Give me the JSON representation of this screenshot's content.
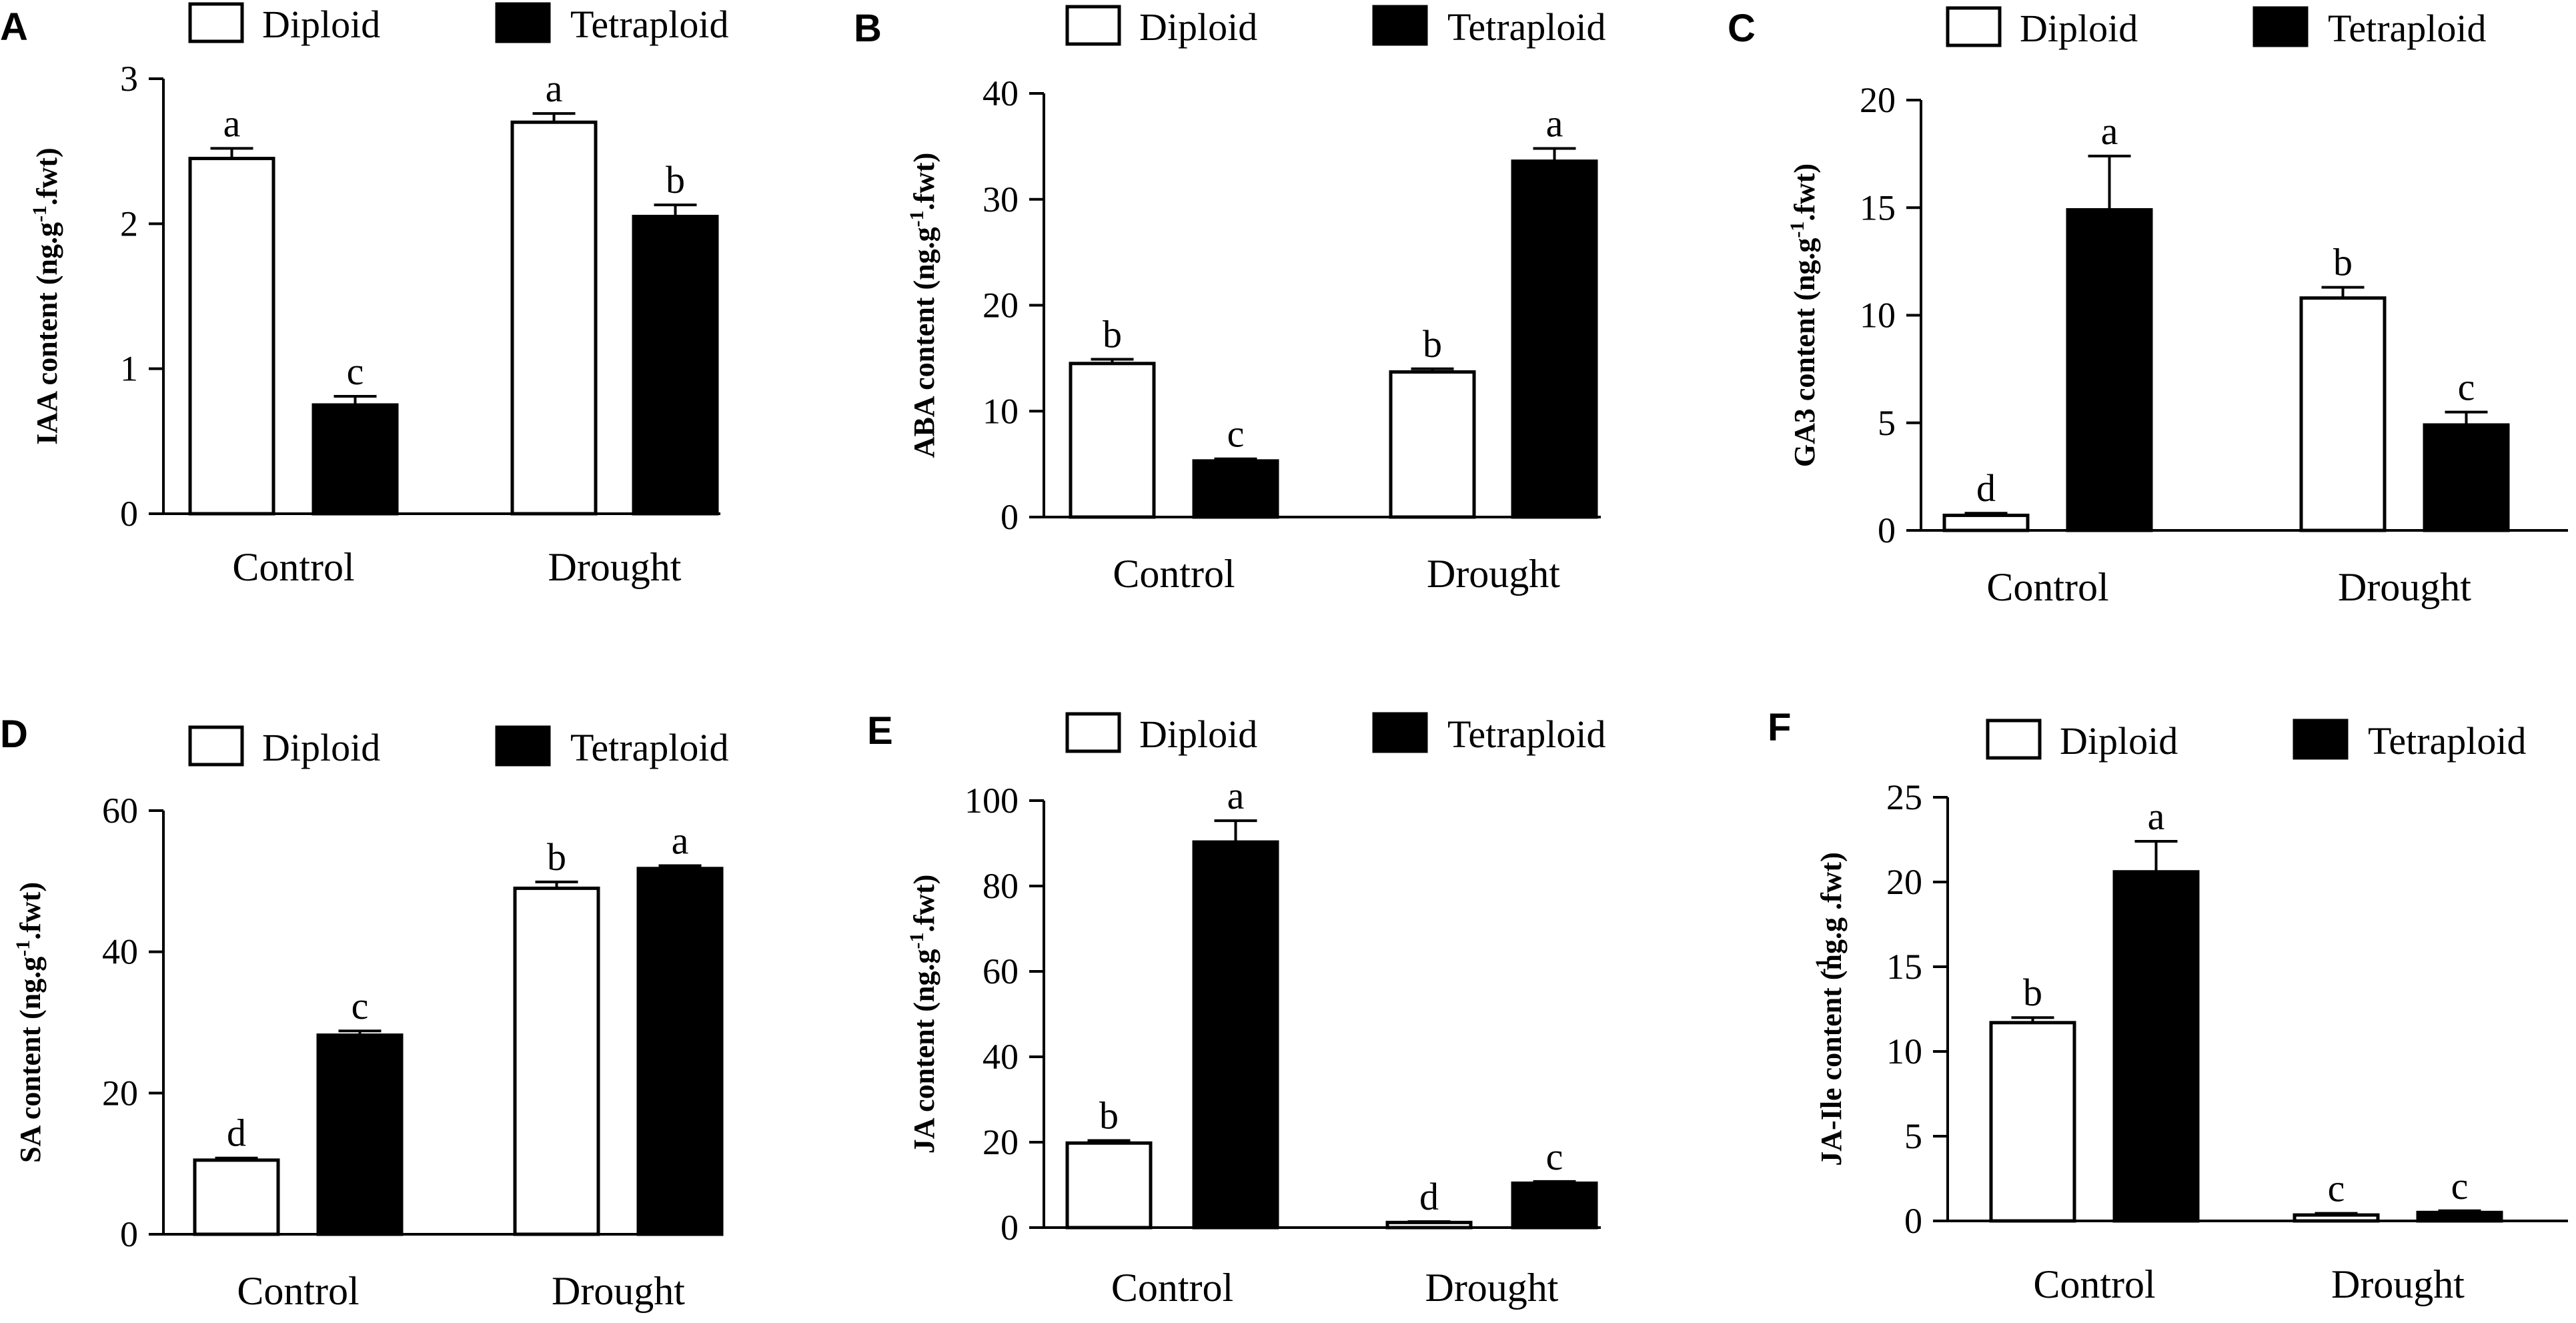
{
  "legend": {
    "diploid": "Diploid",
    "tetraploid": "Tetraploid"
  },
  "colors": {
    "diploid_fill": "#ffffff",
    "tetraploid_fill": "#000000",
    "stroke": "#000000"
  },
  "chart_data": [
    {
      "panel": "A",
      "type": "bar",
      "title": "",
      "ylabel": "IAA content (ng.g-1.fwt)",
      "ylabel_superscript": "-1",
      "ylim": [
        0,
        3
      ],
      "yticks": [
        0,
        1,
        2,
        3
      ],
      "ytick_labels": [
        "0",
        "1",
        "2",
        "3"
      ],
      "categories": [
        "Control",
        "Drought"
      ],
      "series": [
        {
          "name": "Diploid",
          "values": [
            2.45,
            2.7
          ],
          "errors": [
            0.07,
            0.06
          ],
          "letters": [
            "a",
            "a"
          ]
        },
        {
          "name": "Tetraploid",
          "values": [
            0.75,
            2.05
          ],
          "errors": [
            0.06,
            0.08
          ],
          "letters": [
            "c",
            "b"
          ]
        }
      ]
    },
    {
      "panel": "B",
      "type": "bar",
      "title": "",
      "ylabel": "ABA content (ng.g-1.fwt)",
      "ylabel_superscript": "-1",
      "ylim": [
        0,
        40
      ],
      "yticks": [
        0,
        10,
        20,
        30,
        40
      ],
      "ytick_labels": [
        "0",
        "10",
        "20",
        "30",
        "40"
      ],
      "categories": [
        "Control",
        "Drought"
      ],
      "series": [
        {
          "name": "Diploid",
          "values": [
            14.5,
            13.7
          ],
          "errors": [
            0.4,
            0.3
          ],
          "letters": [
            "b",
            "b"
          ]
        },
        {
          "name": "Tetraploid",
          "values": [
            5.3,
            33.6
          ],
          "errors": [
            0.2,
            1.2
          ],
          "letters": [
            "c",
            "a"
          ]
        }
      ]
    },
    {
      "panel": "C",
      "type": "bar",
      "title": "",
      "ylabel": "GA3 content (ng.g-1.fwt)",
      "ylabel_superscript": "-1",
      "ylim": [
        0,
        20
      ],
      "yticks": [
        0,
        5,
        10,
        15,
        20
      ],
      "ytick_labels": [
        "0",
        "5",
        "10",
        "15",
        "20"
      ],
      "categories": [
        "Control",
        "Drought"
      ],
      "series": [
        {
          "name": "Diploid",
          "values": [
            0.7,
            10.8
          ],
          "errors": [
            0.1,
            0.5
          ],
          "letters": [
            "d",
            "b"
          ]
        },
        {
          "name": "Tetraploid",
          "values": [
            14.9,
            4.9
          ],
          "errors": [
            2.5,
            0.6
          ],
          "letters": [
            "a",
            "c"
          ]
        }
      ]
    },
    {
      "panel": "D",
      "type": "bar",
      "title": "",
      "ylabel": "SA content (ng.g-1.fwt)",
      "ylabel_superscript": "-1",
      "ylim": [
        0,
        60
      ],
      "yticks": [
        0,
        20,
        40,
        60
      ],
      "ytick_labels": [
        "0",
        "20",
        "40",
        "60"
      ],
      "categories": [
        "Control",
        "Drought"
      ],
      "series": [
        {
          "name": "Diploid",
          "values": [
            10.5,
            49.0
          ],
          "errors": [
            0.3,
            0.9
          ],
          "letters": [
            "d",
            "b"
          ]
        },
        {
          "name": "Tetraploid",
          "values": [
            28.2,
            51.8
          ],
          "errors": [
            0.6,
            0.4
          ],
          "letters": [
            "c",
            "a"
          ]
        }
      ]
    },
    {
      "panel": "E",
      "type": "bar",
      "title": "",
      "ylabel": "JA content (ng.g-1.fwt)",
      "ylabel_superscript": "-1",
      "ylim": [
        0,
        100
      ],
      "yticks": [
        0,
        20,
        40,
        60,
        80,
        100
      ],
      "ytick_labels": [
        "0",
        "20",
        "40",
        "60",
        "80",
        "100"
      ],
      "categories": [
        "Control",
        "Drought"
      ],
      "series": [
        {
          "name": "Diploid",
          "values": [
            19.8,
            1.2
          ],
          "errors": [
            0.6,
            0.2
          ],
          "letters": [
            "b",
            "d"
          ]
        },
        {
          "name": "Tetraploid",
          "values": [
            90.3,
            10.4
          ],
          "errors": [
            5.0,
            0.4
          ],
          "letters": [
            "a",
            "c"
          ]
        }
      ]
    },
    {
      "panel": "F",
      "type": "bar",
      "title": "",
      "ylabel": "JA-Ile content (ng.g .fwt)",
      "ylabel_superscript": "-1",
      "ylim": [
        0,
        25
      ],
      "yticks": [
        0,
        5,
        10,
        15,
        20,
        25
      ],
      "ytick_labels": [
        "0",
        "5",
        "10",
        "15",
        "20",
        "25"
      ],
      "categories": [
        "Control",
        "Drought"
      ],
      "series": [
        {
          "name": "Diploid",
          "values": [
            11.7,
            0.35
          ],
          "errors": [
            0.3,
            0.1
          ],
          "letters": [
            "b",
            "c"
          ]
        },
        {
          "name": "Tetraploid",
          "values": [
            20.6,
            0.5
          ],
          "errors": [
            1.8,
            0.1
          ],
          "letters": [
            "a",
            "c"
          ]
        }
      ]
    }
  ]
}
